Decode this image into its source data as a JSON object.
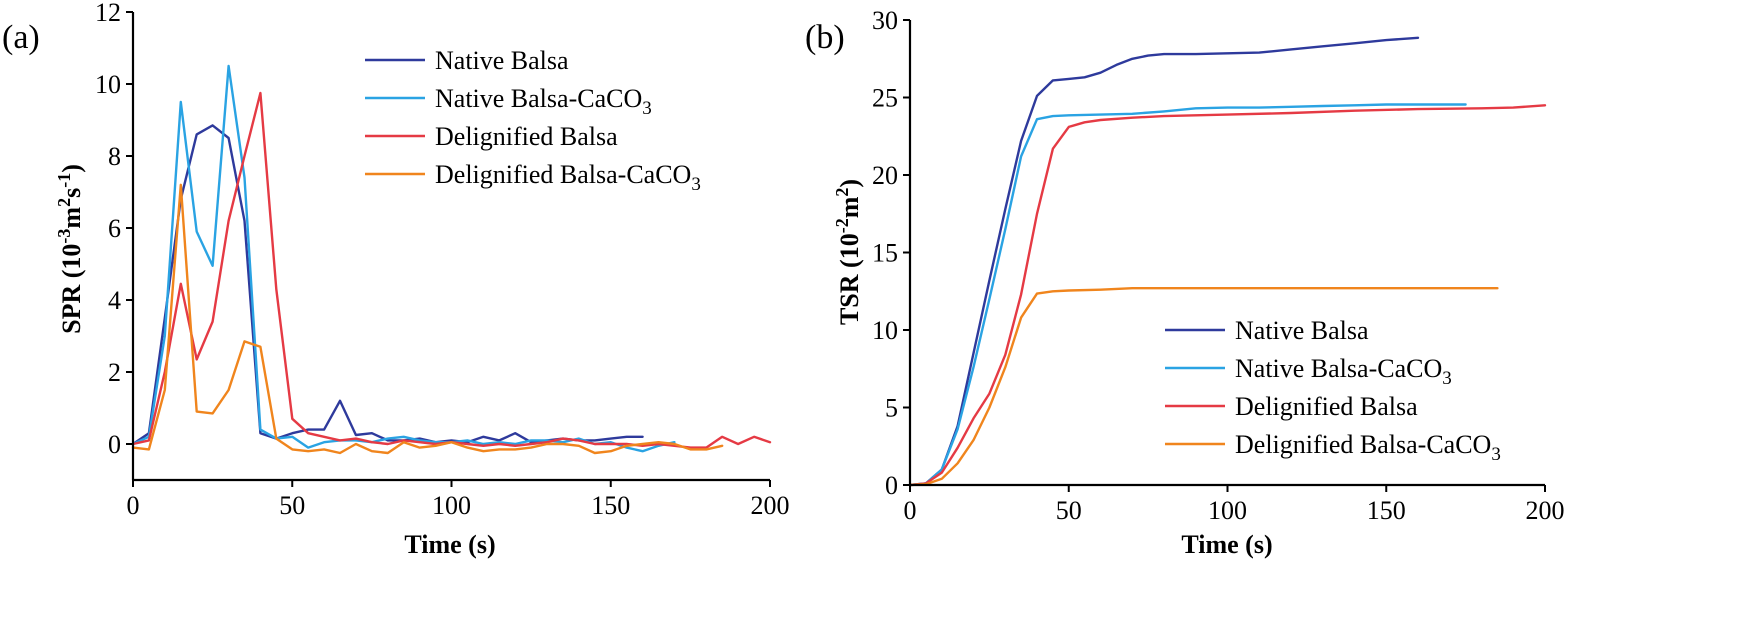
{
  "chart_data": [
    {
      "type": "line",
      "panel_label": "(a)",
      "xlabel": "Time (s)",
      "ylabel_main": "SPR (10",
      "ylabel_sup1": "-3",
      "ylabel_mid1": "m",
      "ylabel_sup2": "2",
      "ylabel_mid2": "s",
      "ylabel_sup3": "-1",
      "ylabel_end": ")",
      "xlim": [
        0,
        200
      ],
      "ylim": [
        -1,
        12
      ],
      "xticks": [
        0,
        50,
        100,
        150,
        200
      ],
      "yticks": [
        0,
        2,
        4,
        6,
        8,
        10,
        12
      ],
      "legend_position": "top-right",
      "series": [
        {
          "name": "Native Balsa",
          "name_sub": "",
          "color": "#2e3a9c",
          "x": [
            0,
            5,
            10,
            15,
            20,
            25,
            30,
            35,
            40,
            45,
            50,
            55,
            60,
            65,
            70,
            75,
            80,
            85,
            90,
            95,
            100,
            105,
            110,
            115,
            120,
            125,
            130,
            135,
            140,
            145,
            150,
            155,
            160
          ],
          "y": [
            0,
            0.3,
            3.5,
            6.8,
            8.6,
            8.85,
            8.5,
            6.2,
            0.3,
            0.15,
            0.3,
            0.4,
            0.4,
            1.2,
            0.25,
            0.3,
            0.1,
            0.1,
            0.15,
            0.05,
            0.1,
            0.05,
            0.2,
            0.1,
            0.3,
            0.05,
            0.1,
            0.15,
            0.1,
            0.1,
            0.15,
            0.2,
            0.2
          ]
        },
        {
          "name": "Native Balsa-CaCO",
          "name_sub": "3",
          "color": "#2aa3e3",
          "x": [
            0,
            5,
            10,
            15,
            20,
            25,
            30,
            35,
            40,
            45,
            50,
            55,
            60,
            65,
            70,
            75,
            80,
            85,
            90,
            95,
            100,
            105,
            110,
            115,
            120,
            125,
            130,
            135,
            140,
            145,
            150,
            155,
            160,
            165,
            170
          ],
          "y": [
            0,
            0.2,
            3.0,
            9.5,
            5.9,
            4.95,
            10.5,
            7.4,
            0.4,
            0.15,
            0.2,
            -0.1,
            0.05,
            0.1,
            0.1,
            0.05,
            0.15,
            0.2,
            0.1,
            0.05,
            0.05,
            0.1,
            0.0,
            0.05,
            0.0,
            0.1,
            0.1,
            0.05,
            0.15,
            0.0,
            0.05,
            -0.1,
            -0.2,
            -0.05,
            0.05
          ]
        },
        {
          "name": "Delignified Balsa",
          "name_sub": "",
          "color": "#e53a44",
          "x": [
            0,
            5,
            10,
            15,
            20,
            25,
            30,
            35,
            40,
            45,
            50,
            55,
            60,
            65,
            70,
            75,
            80,
            85,
            90,
            95,
            100,
            105,
            110,
            115,
            120,
            125,
            130,
            135,
            140,
            145,
            150,
            155,
            160,
            165,
            170,
            175,
            180,
            185,
            190,
            195,
            200
          ],
          "y": [
            0,
            0.1,
            2.0,
            4.45,
            2.35,
            3.4,
            6.2,
            8.0,
            9.75,
            4.3,
            0.7,
            0.3,
            0.2,
            0.1,
            0.15,
            0.05,
            0.0,
            0.1,
            0.05,
            0.0,
            0.05,
            0.0,
            -0.05,
            0.0,
            -0.05,
            0.0,
            0.05,
            0.15,
            0.1,
            0.0,
            0.0,
            0.0,
            -0.05,
            0.0,
            -0.05,
            -0.1,
            -0.1,
            0.2,
            0.0,
            0.2,
            0.05
          ]
        },
        {
          "name": "Delignified Balsa-CaCO",
          "name_sub": "3",
          "color": "#f0851d",
          "x": [
            0,
            5,
            10,
            15,
            20,
            25,
            30,
            35,
            40,
            45,
            50,
            55,
            60,
            65,
            70,
            75,
            80,
            85,
            90,
            95,
            100,
            105,
            110,
            115,
            120,
            125,
            130,
            135,
            140,
            145,
            150,
            155,
            160,
            165,
            170,
            175,
            180,
            185
          ],
          "y": [
            -0.1,
            -0.15,
            1.5,
            7.2,
            0.9,
            0.85,
            1.5,
            2.85,
            2.7,
            0.15,
            -0.15,
            -0.2,
            -0.15,
            -0.25,
            0.0,
            -0.2,
            -0.25,
            0.05,
            -0.1,
            -0.05,
            0.05,
            -0.1,
            -0.2,
            -0.15,
            -0.15,
            -0.1,
            0.0,
            0.0,
            -0.05,
            -0.25,
            -0.2,
            -0.05,
            0.0,
            0.05,
            0.0,
            -0.15,
            -0.15,
            -0.05
          ]
        }
      ]
    },
    {
      "type": "line",
      "panel_label": "(b)",
      "xlabel": "Time (s)",
      "ylabel_main": "TSR (10",
      "ylabel_sup1": "-2",
      "ylabel_mid1": "m",
      "ylabel_sup2": "2",
      "ylabel_end": ")",
      "xlim": [
        0,
        200
      ],
      "ylim": [
        0,
        30
      ],
      "xticks": [
        0,
        50,
        100,
        150,
        200
      ],
      "yticks": [
        0,
        5,
        10,
        15,
        20,
        25,
        30
      ],
      "legend_position": "bottom-right",
      "series": [
        {
          "name": "Native Balsa",
          "name_sub": "",
          "color": "#2e3a9c",
          "x": [
            0,
            5,
            10,
            15,
            20,
            25,
            30,
            35,
            40,
            45,
            50,
            55,
            60,
            65,
            70,
            75,
            80,
            90,
            100,
            110,
            120,
            130,
            140,
            150,
            160
          ],
          "y": [
            0,
            0.1,
            1.0,
            3.8,
            8.5,
            13.2,
            17.8,
            22.2,
            25.1,
            26.1,
            26.2,
            26.3,
            26.6,
            27.1,
            27.5,
            27.7,
            27.8,
            27.8,
            27.85,
            27.9,
            28.1,
            28.3,
            28.5,
            28.7,
            28.85
          ]
        },
        {
          "name": "Native Balsa-CaCO",
          "name_sub": "3",
          "color": "#2aa3e3",
          "x": [
            0,
            5,
            10,
            15,
            20,
            25,
            30,
            35,
            40,
            45,
            50,
            60,
            70,
            80,
            90,
            100,
            110,
            120,
            130,
            140,
            150,
            160,
            175
          ],
          "y": [
            0,
            0.1,
            1.0,
            3.6,
            7.6,
            12.0,
            16.5,
            21.2,
            23.6,
            23.8,
            23.85,
            23.9,
            23.95,
            24.1,
            24.3,
            24.35,
            24.35,
            24.4,
            24.45,
            24.5,
            24.55,
            24.55,
            24.55
          ]
        },
        {
          "name": "Delignified Balsa",
          "name_sub": "",
          "color": "#e53a44",
          "x": [
            0,
            5,
            10,
            15,
            20,
            25,
            30,
            35,
            40,
            45,
            50,
            55,
            60,
            70,
            80,
            100,
            120,
            140,
            160,
            180,
            190,
            200
          ],
          "y": [
            0,
            0.1,
            0.8,
            2.4,
            4.3,
            5.9,
            8.4,
            12.3,
            17.5,
            21.7,
            23.1,
            23.4,
            23.55,
            23.7,
            23.8,
            23.9,
            24.0,
            24.15,
            24.25,
            24.3,
            24.35,
            24.5
          ]
        },
        {
          "name": "Delignified Balsa-CaCO",
          "name_sub": "3",
          "color": "#f0851d",
          "x": [
            0,
            5,
            10,
            15,
            20,
            25,
            30,
            35,
            40,
            45,
            50,
            60,
            70,
            80,
            100,
            120,
            140,
            160,
            185
          ],
          "y": [
            0,
            0.05,
            0.4,
            1.4,
            2.9,
            5.0,
            7.6,
            10.8,
            12.35,
            12.5,
            12.55,
            12.6,
            12.7,
            12.7,
            12.7,
            12.7,
            12.7,
            12.7,
            12.7
          ]
        }
      ]
    }
  ]
}
